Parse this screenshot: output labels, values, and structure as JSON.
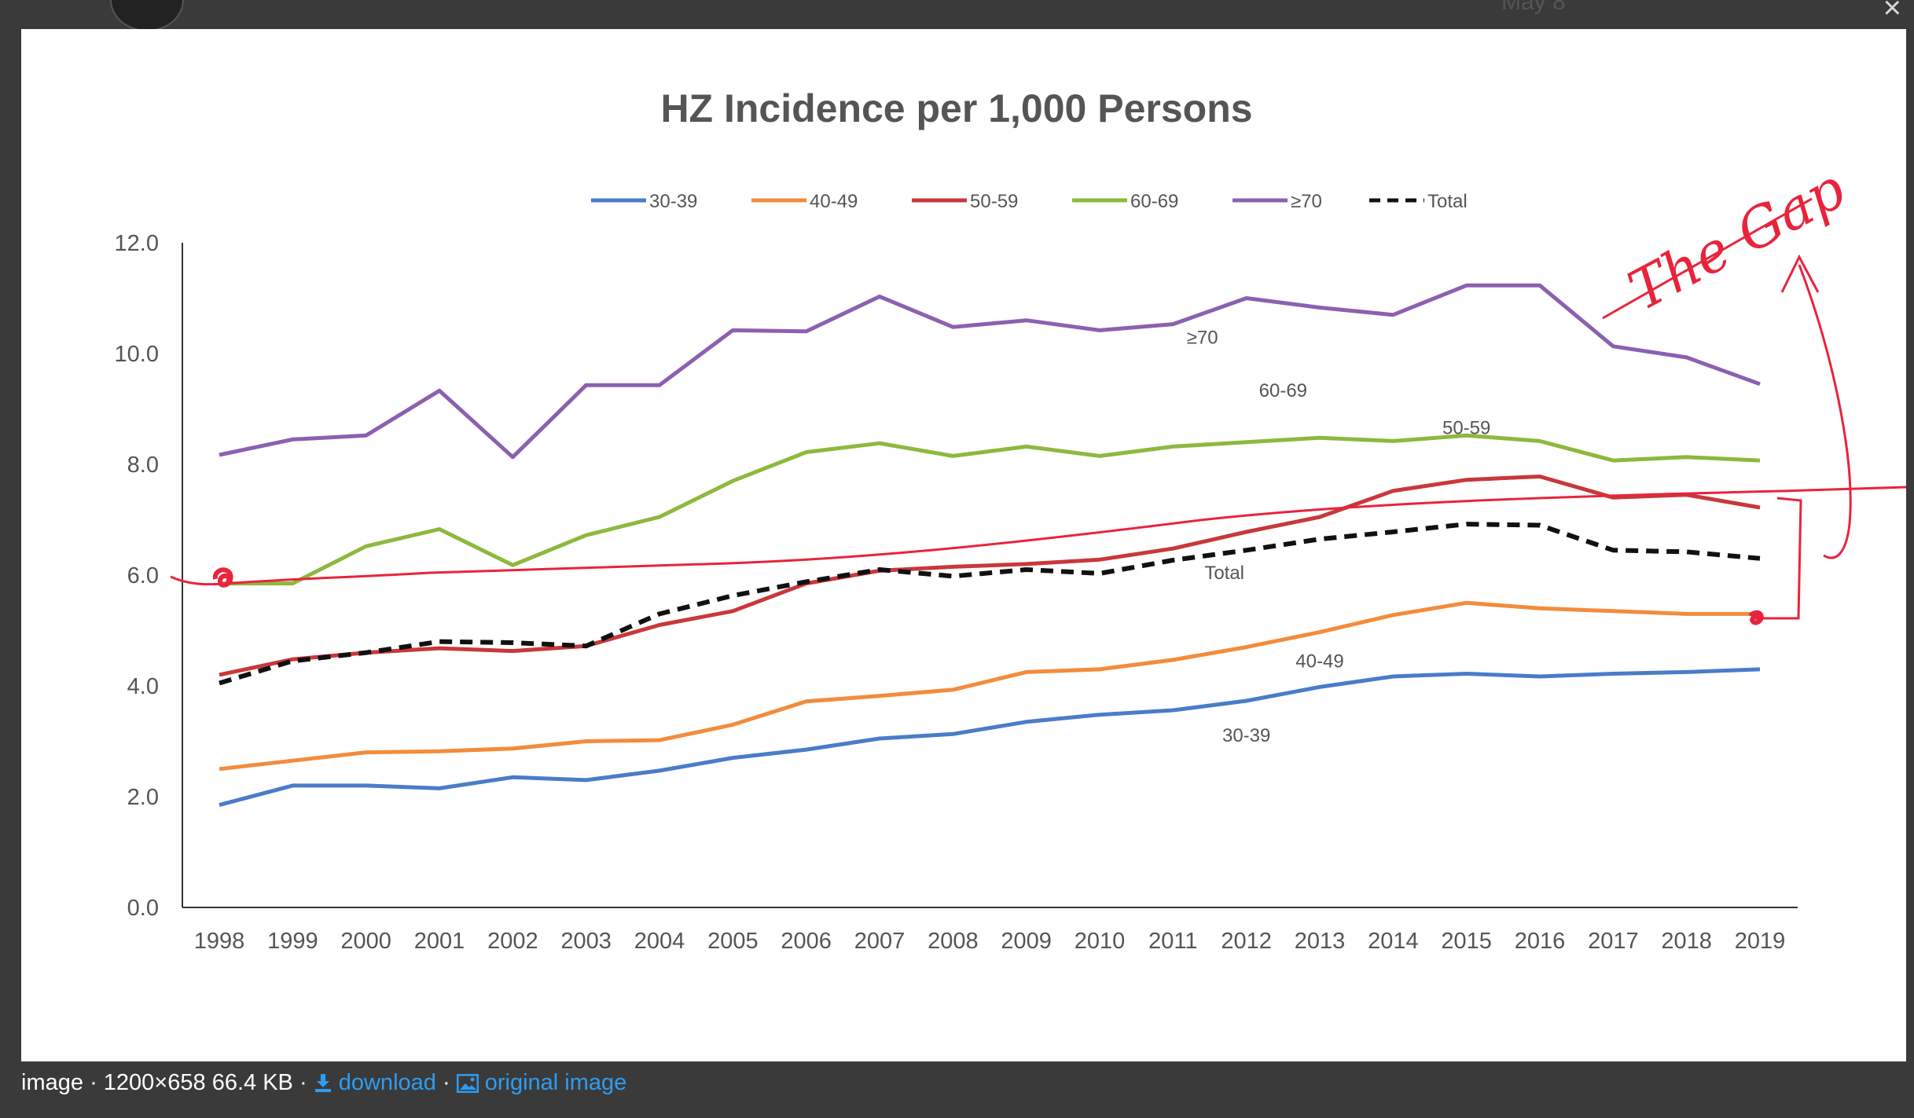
{
  "background": {
    "top_date_text": "May 8"
  },
  "lightbox": {
    "close_glyph": "×"
  },
  "footer": {
    "prefix": "image",
    "separator": "·",
    "meta": "1200×658 66.4 KB",
    "download_label": "download",
    "original_label": "original image"
  },
  "annotation": {
    "handwritten_text": "The Gap",
    "color": "#e8243c"
  },
  "chart_data": {
    "type": "line",
    "title": "HZ Incidence per 1,000 Persons",
    "xlabel": "",
    "ylabel": "",
    "ylim": [
      0,
      12
    ],
    "yticks": [
      0,
      2,
      4,
      6,
      8,
      10,
      12
    ],
    "ytick_labels": [
      "0.0",
      "2.0",
      "4.0",
      "6.0",
      "8.0",
      "10.0",
      "12.0"
    ],
    "grid": false,
    "legend_position": "top",
    "categories": [
      "1998",
      "1999",
      "2000",
      "2001",
      "2002",
      "2003",
      "2004",
      "2005",
      "2006",
      "2007",
      "2008",
      "2009",
      "2010",
      "2011",
      "2012",
      "2013",
      "2014",
      "2015",
      "2016",
      "2017",
      "2018",
      "2019"
    ],
    "series": [
      {
        "name": "30-39",
        "color": "#4a7cc8",
        "dash": false,
        "label": "30-39",
        "values": [
          1.85,
          2.2,
          2.2,
          2.15,
          2.35,
          2.3,
          2.47,
          2.7,
          2.85,
          3.05,
          3.13,
          3.35,
          3.48,
          3.56,
          3.73,
          3.98,
          4.17,
          4.22,
          4.17,
          4.22,
          4.25,
          4.3
        ]
      },
      {
        "name": "40-49",
        "color": "#f28c3c",
        "dash": false,
        "label": "40-49",
        "values": [
          2.5,
          2.65,
          2.8,
          2.82,
          2.87,
          3.0,
          3.02,
          3.3,
          3.72,
          3.82,
          3.93,
          4.25,
          4.3,
          4.47,
          4.7,
          4.97,
          5.28,
          5.5,
          5.4,
          5.35,
          5.3,
          5.3
        ]
      },
      {
        "name": "50-59",
        "color": "#c8383c",
        "dash": false,
        "label": "50-59",
        "values": [
          4.2,
          4.48,
          4.6,
          4.68,
          4.63,
          4.72,
          5.1,
          5.35,
          5.85,
          6.08,
          6.15,
          6.2,
          6.28,
          6.48,
          6.78,
          7.05,
          7.52,
          7.72,
          7.78,
          7.4,
          7.45,
          7.22
        ]
      },
      {
        "name": "60-69",
        "color": "#8eb83e",
        "dash": false,
        "label": "60-69",
        "values": [
          5.85,
          5.85,
          6.52,
          6.83,
          6.18,
          6.72,
          7.05,
          7.7,
          8.22,
          8.38,
          8.15,
          8.32,
          8.15,
          8.32,
          8.4,
          8.48,
          8.42,
          8.52,
          8.42,
          8.07,
          8.13,
          8.07
        ]
      },
      {
        "name": "≥70",
        "color": "#8c60b0",
        "dash": false,
        "label": "≥70",
        "values": [
          8.17,
          8.45,
          8.52,
          9.33,
          8.13,
          9.43,
          9.43,
          10.42,
          10.4,
          11.03,
          10.48,
          10.6,
          10.42,
          10.53,
          11.0,
          10.83,
          10.7,
          11.23,
          11.23,
          10.13,
          9.93,
          9.45
        ]
      },
      {
        "name": "Total",
        "color": "#111111",
        "dash": true,
        "label": "Total",
        "values": [
          4.05,
          4.45,
          4.6,
          4.8,
          4.78,
          4.72,
          5.3,
          5.63,
          5.88,
          6.1,
          5.98,
          6.1,
          6.03,
          6.27,
          6.45,
          6.65,
          6.78,
          6.92,
          6.9,
          6.45,
          6.42,
          6.3
        ]
      }
    ]
  }
}
